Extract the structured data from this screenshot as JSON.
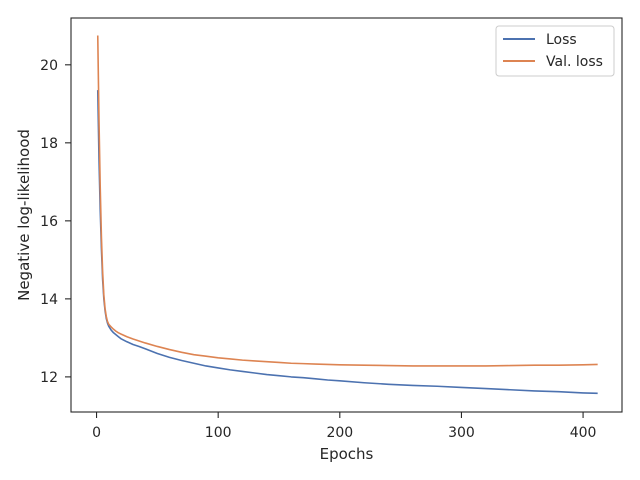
{
  "chart_data": {
    "type": "line",
    "title": "",
    "xlabel": "Epochs",
    "ylabel": "Negative log-likelihood",
    "xlim": [
      -21,
      432
    ],
    "ylim": [
      11.1,
      21.2
    ],
    "xticks": [
      0,
      100,
      200,
      300,
      400
    ],
    "yticks": [
      12,
      14,
      16,
      18,
      20
    ],
    "xtick_labels": [
      "0",
      "100",
      "200",
      "300",
      "400"
    ],
    "ytick_labels": [
      "12",
      "14",
      "16",
      "18",
      "20"
    ],
    "grid": false,
    "legend_position": "top-right",
    "series": [
      {
        "name": "Loss",
        "color": "#4c72b0",
        "x": [
          1,
          2,
          3,
          4,
          5,
          6,
          7,
          8,
          9,
          10,
          12,
          14,
          16,
          18,
          20,
          25,
          30,
          35,
          40,
          50,
          60,
          70,
          80,
          90,
          100,
          110,
          120,
          130,
          140,
          150,
          160,
          170,
          180,
          190,
          200,
          220,
          240,
          260,
          280,
          300,
          320,
          340,
          360,
          380,
          400,
          412
        ],
        "y": [
          19.35,
          17.6,
          16.3,
          15.3,
          14.5,
          14.0,
          13.7,
          13.5,
          13.38,
          13.3,
          13.2,
          13.13,
          13.08,
          13.03,
          12.98,
          12.9,
          12.83,
          12.78,
          12.72,
          12.6,
          12.5,
          12.42,
          12.35,
          12.28,
          12.23,
          12.18,
          12.14,
          12.1,
          12.06,
          12.03,
          12.0,
          11.98,
          11.95,
          11.92,
          11.9,
          11.85,
          11.81,
          11.78,
          11.76,
          11.73,
          11.7,
          11.67,
          11.64,
          11.62,
          11.59,
          11.58
        ]
      },
      {
        "name": "Val. loss",
        "color": "#dd8452",
        "x": [
          1,
          2,
          3,
          4,
          5,
          6,
          7,
          8,
          9,
          10,
          12,
          14,
          16,
          18,
          20,
          25,
          30,
          35,
          40,
          50,
          60,
          70,
          80,
          90,
          100,
          110,
          120,
          130,
          140,
          150,
          160,
          170,
          180,
          190,
          200,
          220,
          240,
          260,
          280,
          300,
          320,
          340,
          360,
          380,
          400,
          412
        ],
        "y": [
          20.75,
          18.6,
          16.9,
          15.6,
          14.7,
          14.1,
          13.75,
          13.55,
          13.42,
          13.35,
          13.28,
          13.22,
          13.17,
          13.13,
          13.1,
          13.03,
          12.97,
          12.92,
          12.87,
          12.78,
          12.7,
          12.63,
          12.57,
          12.53,
          12.49,
          12.46,
          12.43,
          12.41,
          12.39,
          12.37,
          12.35,
          12.34,
          12.33,
          12.32,
          12.31,
          12.3,
          12.29,
          12.28,
          12.28,
          12.28,
          12.28,
          12.29,
          12.3,
          12.3,
          12.31,
          12.32
        ]
      }
    ]
  }
}
